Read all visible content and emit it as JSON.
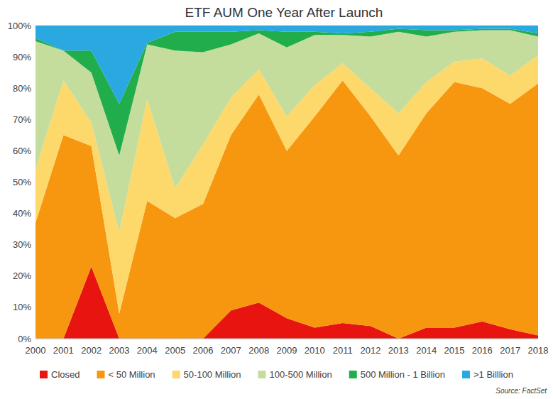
{
  "chart_data": {
    "type": "area",
    "stacked": true,
    "grid": true,
    "legend": "bottom",
    "title": "ETF AUM One Year After Launch",
    "annotations": [
      "Source: FactSet"
    ],
    "categories": [
      "2000",
      "2001",
      "2002",
      "2003",
      "2004",
      "2005",
      "2006",
      "2007",
      "2008",
      "2009",
      "2010",
      "2011",
      "2012",
      "2013",
      "2014",
      "2015",
      "2016",
      "2017",
      "2018"
    ],
    "ylim": [
      0,
      100
    ],
    "yticks": [
      {
        "value": 0,
        "label": "0%"
      },
      {
        "value": 10,
        "label": "10%"
      },
      {
        "value": 20,
        "label": "20%"
      },
      {
        "value": 30,
        "label": "30%"
      },
      {
        "value": 40,
        "label": "40%"
      },
      {
        "value": 50,
        "label": "50%"
      },
      {
        "value": 60,
        "label": "60%"
      },
      {
        "value": 70,
        "label": "70%"
      },
      {
        "value": 80,
        "label": "80%"
      },
      {
        "value": 90,
        "label": "90%"
      },
      {
        "value": 100,
        "label": "100%"
      }
    ],
    "series": [
      {
        "name": "Closed",
        "color": "#e8140f",
        "values": [
          0,
          0,
          23,
          0,
          0,
          0,
          0,
          9,
          11.5,
          6.5,
          3.5,
          5,
          4,
          0,
          3.5,
          3.5,
          5.5,
          3,
          1
        ]
      },
      {
        "name": "< 50 Million",
        "color": "#f7970f",
        "values": [
          37,
          65,
          38.5,
          8,
          44,
          38.5,
          43,
          56,
          66.5,
          53.5,
          67.5,
          77.5,
          67,
          58.5,
          68.5,
          78.5,
          74.5,
          72,
          80.5
        ]
      },
      {
        "name": "50-100 Million",
        "color": "#fdd86b",
        "values": [
          17,
          17.5,
          7.5,
          26,
          32.5,
          9.5,
          19,
          12,
          8,
          11,
          10,
          5.5,
          9,
          13.5,
          10,
          6.5,
          9.5,
          9,
          9
        ]
      },
      {
        "name": "100-500 Million",
        "color": "#c5dd9c",
        "values": [
          41,
          9.5,
          16,
          24.5,
          17.5,
          44,
          29.5,
          17,
          11.5,
          22,
          16,
          9,
          16.5,
          26,
          14.5,
          9.5,
          9,
          14.5,
          6
        ]
      },
      {
        "name": "500 Million - 1 Billion",
        "color": "#21ad4c",
        "values": [
          1,
          0,
          7,
          16.5,
          0.5,
          6,
          6.5,
          4,
          1,
          5,
          1,
          0.5,
          1.5,
          1,
          2,
          0.5,
          0.5,
          0.5,
          1
        ]
      },
      {
        "name": ">1 Billlion",
        "color": "#2aa9e1",
        "values": [
          4,
          8,
          8,
          25,
          5.5,
          2,
          2,
          2,
          1.5,
          2,
          2,
          2.5,
          2,
          1,
          1.5,
          1.5,
          1,
          1,
          2.5
        ]
      }
    ]
  }
}
